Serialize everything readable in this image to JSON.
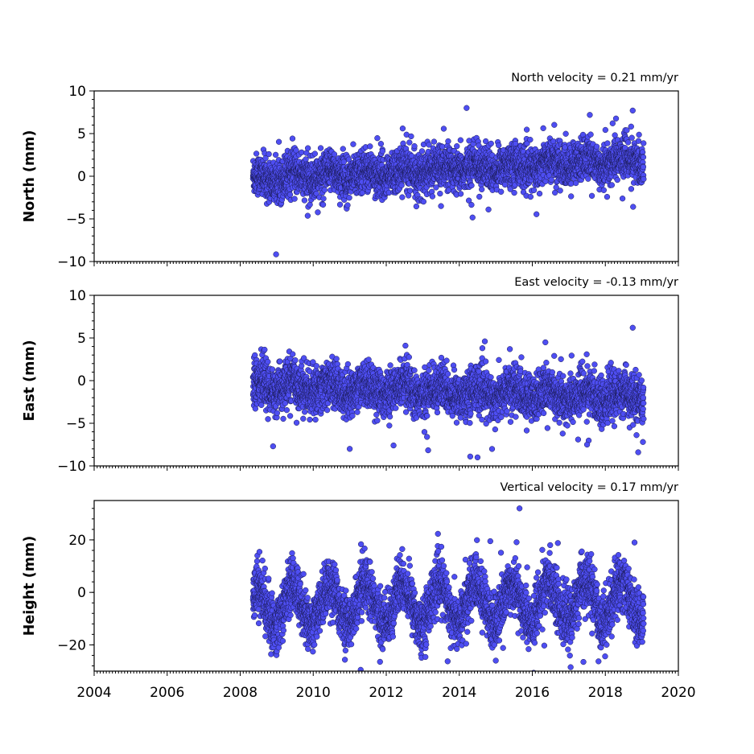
{
  "colors": {
    "marker_fill": "#4e4ef2",
    "marker_edge": "#1a1a55"
  },
  "chart_data": [
    {
      "type": "scatter",
      "id": "north",
      "title": "North velocity = 0.21 mm/yr",
      "xlabel": "",
      "ylabel": "North (mm)",
      "xlim": [
        2004,
        2020
      ],
      "ylim": [
        -10,
        10
      ],
      "yticks": [
        -10,
        -5,
        0,
        5,
        10
      ],
      "xticks": [
        2004,
        2006,
        2008,
        2010,
        2012,
        2014,
        2016,
        2018,
        2020
      ],
      "show_xtick_labels": false,
      "grid": false,
      "series": [
        {
          "x_start": 2008.35,
          "x_end": 2019.05,
          "trend": 0.21,
          "offset": -0.3,
          "noise": 1.2,
          "seasonal_amp": 0.5,
          "outliers": [
            [
              2014.2,
              8.0
            ],
            [
              2018.75,
              7.7
            ],
            [
              2012.45,
              5.6
            ],
            [
              2018.2,
              6.2
            ],
            [
              2013.5,
              -3.5
            ],
            [
              2014.8,
              -3.9
            ],
            [
              2014.55,
              -2.4
            ]
          ]
        }
      ]
    },
    {
      "type": "scatter",
      "id": "east",
      "title": "East velocity = -0.13 mm/yr",
      "xlabel": "",
      "ylabel": "East (mm)",
      "xlim": [
        2004,
        2020
      ],
      "ylim": [
        -10,
        10
      ],
      "yticks": [
        -10,
        -5,
        0,
        5,
        10
      ],
      "xticks": [
        2004,
        2006,
        2008,
        2010,
        2012,
        2014,
        2016,
        2018,
        2020
      ],
      "show_xtick_labels": false,
      "grid": false,
      "series": [
        {
          "x_start": 2008.35,
          "x_end": 2019.05,
          "trend": -0.13,
          "offset": -0.6,
          "noise": 1.3,
          "seasonal_amp": 0.6,
          "outliers": [
            [
              2018.75,
              6.2
            ],
            [
              2014.7,
              4.6
            ],
            [
              2016.6,
              2.9
            ],
            [
              2011.0,
              -8.0
            ],
            [
              2014.3,
              -8.9
            ],
            [
              2014.5,
              -9.0
            ],
            [
              2018.9,
              -8.4
            ],
            [
              2008.9,
              -7.7
            ],
            [
              2012.2,
              -7.6
            ],
            [
              2017.5,
              -7.5
            ]
          ]
        }
      ]
    },
    {
      "type": "scatter",
      "id": "height",
      "title": "Vertical velocity = 0.17 mm/yr",
      "xlabel": "",
      "ylabel": "Height (mm)",
      "xlim": [
        2004,
        2020
      ],
      "ylim": [
        -30,
        35
      ],
      "yticks": [
        -20,
        0,
        20
      ],
      "xticks": [
        2004,
        2006,
        2008,
        2010,
        2012,
        2014,
        2016,
        2018,
        2020
      ],
      "xtick_labels": [
        "2004",
        "2006",
        "2008",
        "2010",
        "2012",
        "2014",
        "2016",
        "2018",
        "2020"
      ],
      "show_xtick_labels": true,
      "grid": false,
      "series": [
        {
          "x_start": 2008.35,
          "x_end": 2019.05,
          "trend": 0.17,
          "offset": -5.0,
          "noise": 5.0,
          "seasonal_amp": 7.5,
          "outliers": [
            [
              2015.65,
              32.0
            ],
            [
              2014.85,
              19.5
            ],
            [
              2016.7,
              18.8
            ],
            [
              2018.8,
              19.0
            ],
            [
              2011.3,
              -29.5
            ],
            [
              2017.05,
              -28.5
            ],
            [
              2015.0,
              -26.0
            ],
            [
              2017.4,
              -26.5
            ]
          ]
        }
      ]
    }
  ]
}
